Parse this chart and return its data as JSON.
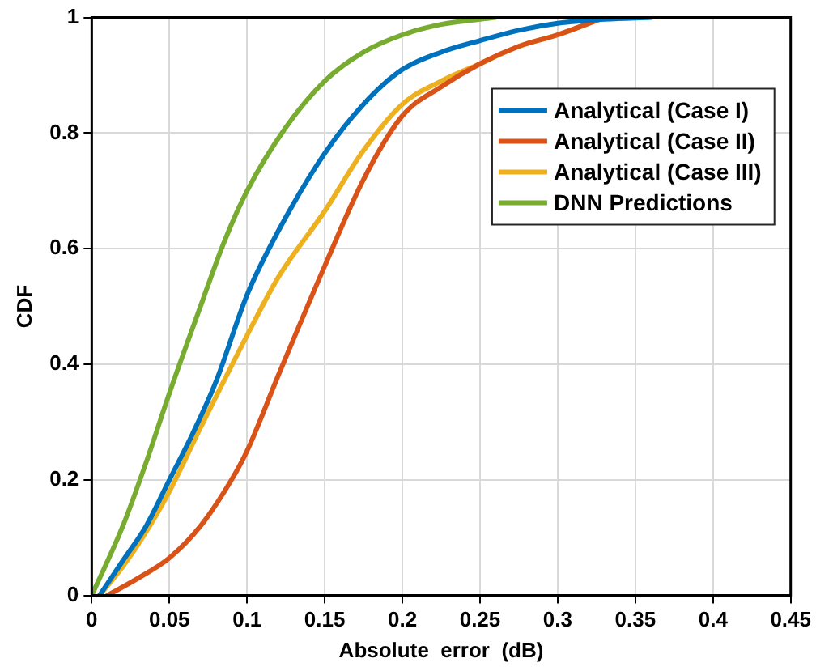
{
  "chart_data": {
    "type": "line",
    "xlabel": "Absolute  error  (dB)",
    "ylabel": "CDF",
    "xlim": [
      0,
      0.45
    ],
    "ylim": [
      0,
      1
    ],
    "xticks": [
      0,
      0.05,
      0.1,
      0.15,
      0.2,
      0.25,
      0.3,
      0.35,
      0.4,
      0.45
    ],
    "yticks": [
      0,
      0.2,
      0.4,
      0.6,
      0.8,
      1
    ],
    "grid": true,
    "legend": "top right",
    "marker": "none",
    "line_style": "solid",
    "series": [
      {
        "name": "Analytical (Case I)",
        "color": "#0072bd",
        "x": [
          0.005,
          0.02,
          0.035,
          0.05,
          0.065,
          0.08,
          0.1,
          0.12,
          0.15,
          0.175,
          0.2,
          0.225,
          0.25,
          0.275,
          0.3,
          0.33,
          0.36
        ],
        "values": [
          0,
          0.06,
          0.12,
          0.2,
          0.28,
          0.37,
          0.52,
          0.63,
          0.765,
          0.85,
          0.91,
          0.94,
          0.96,
          0.978,
          0.99,
          0.997,
          1
        ]
      },
      {
        "name": "Analytical (Case II)",
        "color": "#d95319",
        "x": [
          0.01,
          0.03,
          0.05,
          0.07,
          0.09,
          0.1,
          0.12,
          0.15,
          0.175,
          0.2,
          0.225,
          0.25,
          0.275,
          0.3,
          0.33
        ],
        "values": [
          0,
          0.03,
          0.065,
          0.12,
          0.2,
          0.25,
          0.38,
          0.57,
          0.72,
          0.83,
          0.88,
          0.92,
          0.95,
          0.97,
          1
        ]
      },
      {
        "name": "Analytical (Case III)",
        "color": "#edb120",
        "x": [
          0.005,
          0.02,
          0.035,
          0.05,
          0.07,
          0.1,
          0.12,
          0.15,
          0.175,
          0.2,
          0.225,
          0.25,
          0.275,
          0.3,
          0.33
        ],
        "values": [
          0,
          0.05,
          0.11,
          0.18,
          0.29,
          0.45,
          0.55,
          0.665,
          0.77,
          0.85,
          0.89,
          0.92,
          0.95,
          0.97,
          1
        ]
      },
      {
        "name": "DNN Predictions",
        "color": "#77ac30",
        "x": [
          0,
          0.02,
          0.035,
          0.05,
          0.07,
          0.085,
          0.1,
          0.125,
          0.15,
          0.175,
          0.2,
          0.225,
          0.25,
          0.26
        ],
        "values": [
          0,
          0.12,
          0.23,
          0.35,
          0.5,
          0.61,
          0.7,
          0.81,
          0.89,
          0.94,
          0.97,
          0.988,
          0.997,
          1
        ]
      }
    ]
  }
}
